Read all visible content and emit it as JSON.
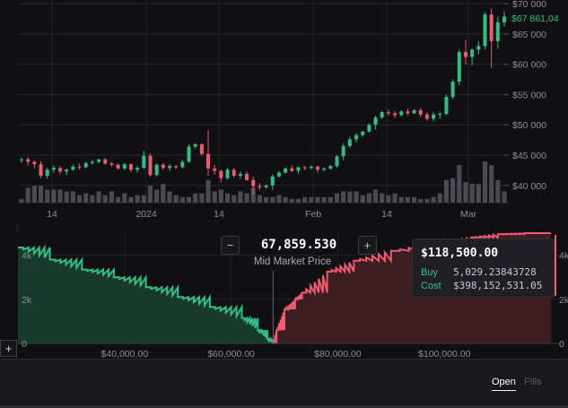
{
  "price_chart": {
    "y_ticks": [
      "$70 000",
      "$65 000",
      "$60 000",
      "$55 000",
      "$50 000",
      "$45 000",
      "$40 000"
    ],
    "x_ticks": [
      "14",
      "2024",
      "14",
      "Feb",
      "14",
      "Mar"
    ],
    "last_price": "$67 861,04",
    "colors": {
      "up": "#2fbf83",
      "down": "#ef5a6e",
      "volume": "#4a4a52"
    },
    "chart_data": {
      "type": "candlestick",
      "ylim": [
        37000,
        70500
      ],
      "x_axis": "date",
      "candles": [
        [
          44200,
          44600,
          43700,
          44300
        ],
        [
          44300,
          44700,
          43300,
          43900
        ],
        [
          43900,
          44100,
          42800,
          43500
        ],
        [
          43500,
          44000,
          41200,
          41600
        ],
        [
          41600,
          42900,
          41100,
          42600
        ],
        [
          42600,
          43300,
          42100,
          42900
        ],
        [
          42900,
          43200,
          41900,
          42300
        ],
        [
          42300,
          42800,
          41700,
          42600
        ],
        [
          42600,
          43500,
          42400,
          43100
        ],
        [
          43100,
          43600,
          42600,
          43000
        ],
        [
          43000,
          43900,
          42800,
          43700
        ],
        [
          43700,
          44200,
          43400,
          43900
        ],
        [
          43900,
          44400,
          43600,
          44300
        ],
        [
          44300,
          44500,
          43400,
          43600
        ],
        [
          43600,
          43900,
          43100,
          43400
        ],
        [
          43400,
          43600,
          42600,
          42800
        ],
        [
          42800,
          43700,
          42500,
          43500
        ],
        [
          43500,
          43600,
          42200,
          42600
        ],
        [
          42600,
          43200,
          42100,
          42900
        ],
        [
          42900,
          45700,
          42700,
          44900
        ],
        [
          44900,
          45300,
          41400,
          41700
        ],
        [
          41700,
          43600,
          41500,
          43400
        ],
        [
          43400,
          43700,
          42600,
          42900
        ],
        [
          42900,
          43500,
          42400,
          43200
        ],
        [
          43200,
          43300,
          42700,
          43000
        ],
        [
          43000,
          44200,
          42800,
          43900
        ],
        [
          43900,
          46800,
          43700,
          46400
        ],
        [
          46400,
          47000,
          46100,
          46800
        ],
        [
          46800,
          46900,
          44900,
          45200
        ],
        [
          45200,
          49100,
          41600,
          42800
        ],
        [
          42800,
          43400,
          41800,
          42400
        ],
        [
          42400,
          42600,
          40500,
          41200
        ],
        [
          41200,
          42900,
          40900,
          42600
        ],
        [
          42600,
          42900,
          41300,
          41600
        ],
        [
          41600,
          42300,
          41100,
          41900
        ],
        [
          41900,
          42300,
          40800,
          40900
        ],
        [
          40900,
          41500,
          38500,
          39900
        ],
        [
          39900,
          40400,
          39200,
          39700
        ],
        [
          39700,
          40200,
          39400,
          40000
        ],
        [
          40000,
          41800,
          39300,
          41500
        ],
        [
          41500,
          42400,
          41300,
          42100
        ],
        [
          42100,
          43000,
          42000,
          42800
        ],
        [
          42800,
          43300,
          42200,
          42400
        ],
        [
          42400,
          43100,
          41900,
          43000
        ],
        [
          43000,
          43200,
          42500,
          42900
        ],
        [
          42900,
          43300,
          42600,
          43100
        ],
        [
          43100,
          43300,
          42100,
          42600
        ],
        [
          42600,
          43000,
          42300,
          42800
        ],
        [
          42800,
          43400,
          42600,
          43200
        ],
        [
          43200,
          45000,
          42900,
          44800
        ],
        [
          44800,
          47000,
          44200,
          46500
        ],
        [
          46500,
          48000,
          46200,
          47600
        ],
        [
          47600,
          48600,
          47100,
          48300
        ],
        [
          48300,
          49000,
          48000,
          48900
        ],
        [
          48900,
          50300,
          48700,
          50000
        ],
        [
          50000,
          51500,
          49200,
          51200
        ],
        [
          51200,
          52300,
          51000,
          52100
        ],
        [
          52100,
          52500,
          51500,
          51900
        ],
        [
          51900,
          52300,
          51100,
          51600
        ],
        [
          51600,
          52400,
          51400,
          52200
        ],
        [
          52200,
          52700,
          51600,
          51900
        ],
        [
          51900,
          52600,
          51800,
          52400
        ],
        [
          52400,
          52800,
          51300,
          51700
        ],
        [
          51700,
          52100,
          50700,
          51000
        ],
        [
          51000,
          52100,
          50600,
          51700
        ],
        [
          51700,
          52200,
          51000,
          51800
        ],
        [
          51800,
          55000,
          51600,
          54600
        ],
        [
          54600,
          57500,
          54200,
          57100
        ],
        [
          57100,
          62400,
          56500,
          62000
        ],
        [
          62000,
          64000,
          60000,
          61200
        ],
        [
          61200,
          62600,
          59800,
          62400
        ],
        [
          62400,
          63800,
          61600,
          63000
        ],
        [
          63000,
          68600,
          62500,
          68200
        ],
        [
          68200,
          69200,
          59400,
          63800
        ],
        [
          63800,
          67900,
          62600,
          66900
        ],
        [
          66900,
          68700,
          66200,
          67861
        ]
      ],
      "volume": [
        2,
        8,
        9,
        9,
        7,
        7,
        7,
        6,
        6,
        4,
        5,
        4,
        6,
        4,
        6,
        3,
        5,
        3,
        4,
        4,
        9,
        7,
        10,
        6,
        4,
        3,
        3,
        5,
        5,
        12,
        6,
        7,
        5,
        4,
        6,
        5,
        8,
        4,
        3,
        3,
        4,
        3,
        2,
        2,
        3,
        3,
        3,
        3,
        3,
        5,
        6,
        6,
        6,
        4,
        5,
        7,
        5,
        4,
        5,
        3,
        3,
        3,
        2,
        2,
        3,
        5,
        12,
        13,
        20,
        11,
        10,
        10,
        22,
        20,
        12,
        6
      ]
    }
  },
  "depth_chart": {
    "mid_price": "67,859.530",
    "mid_caption": "Mid Market Price",
    "decrement_symbol": "−",
    "increment_symbol": "+",
    "y_ticks_left": [
      "4k",
      "2k",
      "0"
    ],
    "y_ticks_right": [
      "4k",
      "2k",
      "0"
    ],
    "x_ticks": [
      "$40,000.00",
      "$60,000.00",
      "$80,000.00",
      "$100,000.00"
    ],
    "colors": {
      "bid": "#2fbf83",
      "ask": "#ef5a6e",
      "bid_fill": "#173a2c",
      "ask_fill": "#3c1e22"
    },
    "chart_data": {
      "type": "area",
      "xlim": [
        20000,
        121000
      ],
      "ylim": [
        0,
        5000
      ],
      "bids": {
        "x": [
          20000,
          26000,
          32000,
          38000,
          44000,
          50000,
          56000,
          62000,
          65000,
          66800,
          67860
        ],
        "y": [
          4350,
          3800,
          3350,
          3000,
          2550,
          2100,
          1650,
          1150,
          600,
          200,
          0
        ]
      },
      "asks": {
        "x": [
          67860,
          68500,
          70000,
          72000,
          73300,
          78000,
          83000,
          90000,
          100000,
          105000,
          110000,
          115000,
          120000
        ],
        "y": [
          0,
          600,
          1550,
          2000,
          2300,
          3250,
          3750,
          4200,
          4600,
          4800,
          4950,
          5000,
          5000
        ]
      }
    }
  },
  "tooltip": {
    "price": "$118,500.00",
    "buy_label": "Buy",
    "buy_value": "5,029.23843728",
    "cost_label": "Cost",
    "cost_value": "$398,152,531.05"
  },
  "toolbar": {
    "add_symbol": "+"
  },
  "bottom_tabs": {
    "open": "Open",
    "fills": "Fills"
  }
}
